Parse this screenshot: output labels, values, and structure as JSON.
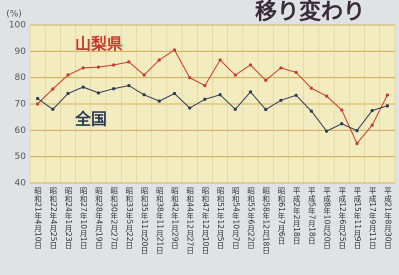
{
  "chart_data": {
    "type": "line",
    "title": "移り変わり",
    "y_label": "(%)",
    "categories": [
      "昭和21年4月10日",
      "昭和22年4月25日",
      "昭和24年1月23日",
      "昭和27年10月1日",
      "昭和28年4月19日",
      "昭和30年2月27日",
      "昭和33年5月22日",
      "昭和35年11月20日",
      "昭和38年11月21日",
      "昭和42年1月29日",
      "昭和44年12月27日",
      "昭和47年12月10日",
      "昭和51年12月5日",
      "昭和54年10月7日",
      "昭和55年6月22日",
      "昭和58年12月18日",
      "昭和61年7月6日",
      "平成2年2月18日",
      "平成5年7月18日",
      "平成8年10月20日",
      "平成12年6月25日",
      "平成15年11月9日",
      "平成17年9月11日",
      "平成21年8月30日"
    ],
    "series": [
      {
        "name": "山梨県",
        "color": "#c8392f",
        "values": [
          70,
          75.7,
          81,
          83.7,
          84,
          84.8,
          86,
          81,
          86.7,
          90.5,
          80,
          77,
          86.7,
          81,
          84.8,
          79,
          83.7,
          82,
          76,
          73,
          67.7,
          55,
          62,
          73.4
        ]
      },
      {
        "name": "全国",
        "color": "#2b3a55",
        "values": [
          72.1,
          68,
          74,
          76.4,
          74.2,
          75.8,
          77,
          73.5,
          71.1,
          74,
          68.5,
          71.8,
          73.5,
          68,
          74.6,
          67.9,
          71.4,
          73.3,
          67.3,
          59.7,
          62.5,
          59.9,
          67.5,
          69.3
        ]
      }
    ],
    "ylim": [
      40,
      100
    ],
    "yticks": [
      40,
      50,
      60,
      70,
      80,
      90,
      100
    ],
    "grid": true
  }
}
